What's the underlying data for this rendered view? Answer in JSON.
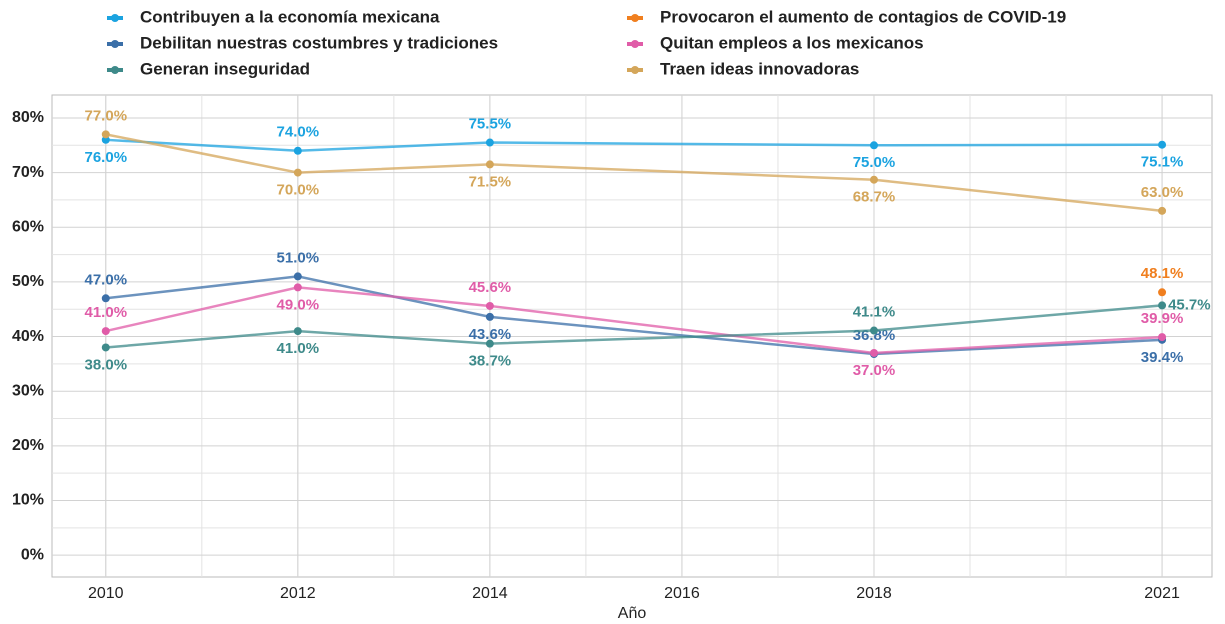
{
  "chart_data": {
    "type": "line",
    "x": [
      2010,
      2012,
      2014,
      2018,
      2021
    ],
    "xlabel": "Año",
    "xlim": [
      2009.44,
      2021.52
    ],
    "xticks": [
      2010,
      2012,
      2014,
      2016,
      2018,
      2021
    ],
    "ylim": [
      -4,
      84.2
    ],
    "yticks": [
      {
        "value": 0,
        "label": "0%"
      },
      {
        "value": 10,
        "label": "10%"
      },
      {
        "value": 20,
        "label": "20%"
      },
      {
        "value": 30,
        "label": "30%"
      },
      {
        "value": 40,
        "label": "40%"
      },
      {
        "value": 50,
        "label": "50%"
      },
      {
        "value": 60,
        "label": "60%"
      },
      {
        "value": 70,
        "label": "70%"
      },
      {
        "value": 80,
        "label": "80%"
      }
    ],
    "grid": true,
    "minor_grid": true,
    "legend": "top",
    "series": [
      {
        "name": "Contribuyen a la economía mexicana",
        "color": "#1ba3e0",
        "values": [
          76.0,
          74.0,
          75.5,
          75.0,
          75.1
        ],
        "value_labels": [
          "76.0%",
          "74.0%",
          "75.5%",
          "75.0%",
          "75.1%"
        ]
      },
      {
        "name": "Provocaron el aumento de contagios de COVID-19",
        "color": "#f07f1f",
        "values": [
          null,
          null,
          null,
          null,
          48.1
        ],
        "value_labels": [
          null,
          null,
          null,
          null,
          "48.1%"
        ]
      },
      {
        "name": "Debilitan nuestras costumbres y tradiciones",
        "color": "#3b6fa8",
        "values": [
          47.0,
          51.0,
          43.6,
          36.8,
          39.4
        ],
        "value_labels": [
          "47.0%",
          "51.0%",
          "43.6%",
          "36.8%",
          "39.4%"
        ]
      },
      {
        "name": "Quitan empleos a los mexicanos",
        "color": "#e05ca8",
        "values": [
          41.0,
          49.0,
          45.6,
          37.0,
          39.9
        ],
        "value_labels": [
          "41.0%",
          "49.0%",
          "45.6%",
          "37.0%",
          "39.9%"
        ]
      },
      {
        "name": "Generan inseguridad",
        "color": "#3e8a8a",
        "values": [
          38.0,
          41.0,
          38.7,
          41.1,
          45.7
        ],
        "value_labels": [
          "38.0%",
          "41.0%",
          "38.7%",
          "41.1%",
          "45.7%"
        ]
      },
      {
        "name": "Traen ideas innovadoras",
        "color": "#d4a65a",
        "values": [
          77.0,
          70.0,
          71.5,
          68.7,
          63.0
        ],
        "value_labels": [
          "77.0%",
          "70.0%",
          "71.5%",
          "68.7%",
          "63.0%"
        ]
      }
    ]
  }
}
